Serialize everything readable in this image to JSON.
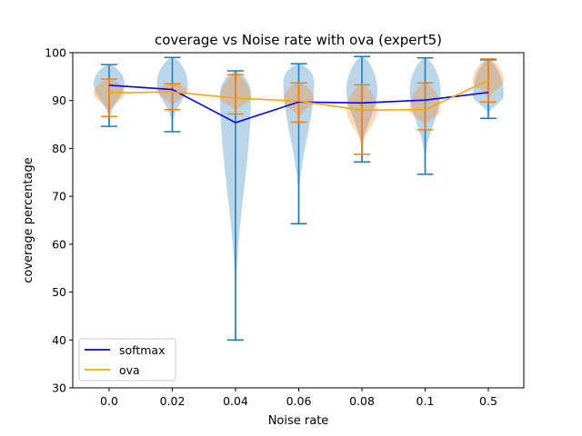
{
  "chart_data": {
    "type": "violin",
    "title": "coverage vs Noise rate with ova (expert5)",
    "xlabel": "Noise rate",
    "ylabel": "coverage percentage",
    "categories": [
      "0.0",
      "0.02",
      "0.04",
      "0.06",
      "0.08",
      "0.1",
      "0.5"
    ],
    "ylim": [
      30,
      100
    ],
    "yticks": [
      30,
      40,
      50,
      60,
      70,
      80,
      90,
      100
    ],
    "legend_position": "lower-left",
    "series": [
      {
        "name": "softmax",
        "color": "#0000ff",
        "violin_color": "#1f77b4",
        "mean": [
          93.2,
          92.3,
          85.4,
          89.7,
          89.5,
          90.1,
          91.7
        ],
        "min": [
          84.6,
          83.5,
          40.0,
          64.3,
          77.2,
          74.6,
          86.3
        ],
        "max": [
          97.5,
          99.0,
          96.2,
          97.7,
          99.2,
          98.9,
          98.5
        ],
        "violin_peak": [
          93.5,
          93.5,
          91.5,
          94.0,
          92.0,
          92.0,
          91.0
        ]
      },
      {
        "name": "ova",
        "color": "#ffa500",
        "violin_color": "#ff7f0e",
        "mean": [
          91.6,
          91.8,
          90.5,
          89.9,
          88.0,
          88.1,
          94.2
        ],
        "min": [
          86.7,
          88.1,
          87.2,
          85.5,
          78.8,
          83.9,
          89.7
        ],
        "max": [
          94.5,
          93.5,
          95.4,
          93.7,
          93.3,
          93.7,
          98.7
        ],
        "violin_peak": [
          91.5,
          92.0,
          90.5,
          90.0,
          88.0,
          88.0,
          94.0
        ]
      }
    ]
  }
}
